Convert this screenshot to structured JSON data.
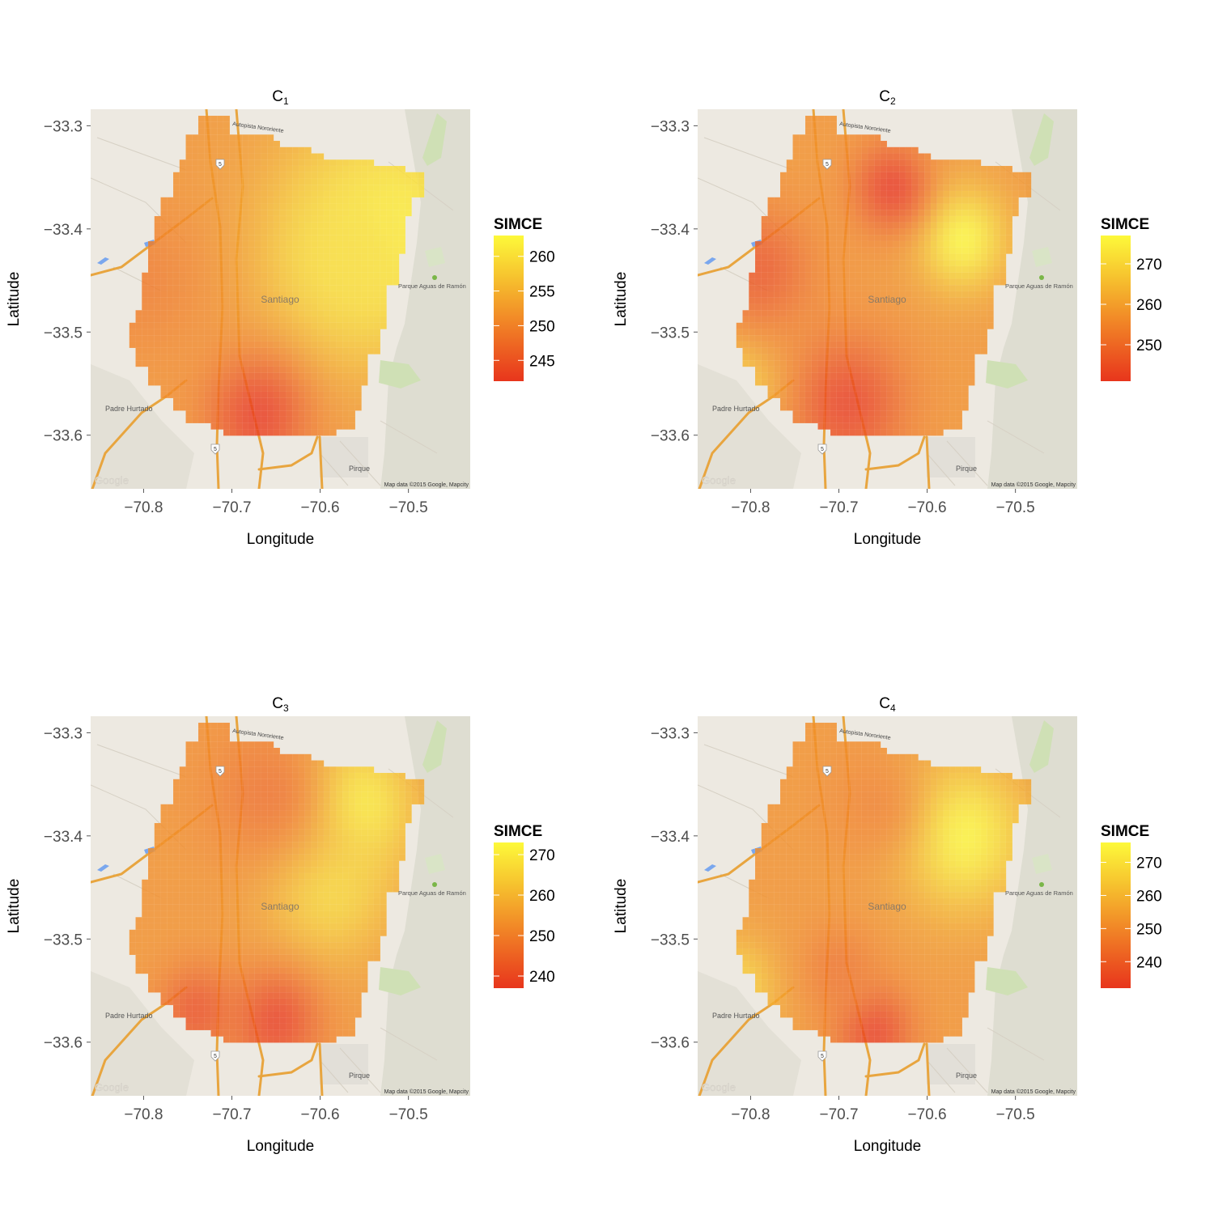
{
  "figure": {
    "x_axis_label": "Longitude",
    "y_axis_label": "Latitude",
    "x_ticks": [
      "−70.8",
      "−70.7",
      "−70.6",
      "−70.5"
    ],
    "y_ticks": [
      "−33.3",
      "−33.4",
      "−33.5",
      "−33.6"
    ],
    "x_range": [
      -70.86,
      -70.43
    ],
    "y_range": [
      -33.652,
      -33.284
    ],
    "map_labels": {
      "city": "Santiago",
      "west_town": "Padre Hurtado",
      "south_town": "Pirque",
      "park": "Parque Aguas de Ramón",
      "highway": "Autopista Nororiente",
      "road_shield": "5",
      "attribution": "Map data ©2015 Google, Mapcity",
      "logo": "Google"
    }
  },
  "chart_data": [
    {
      "type": "heatmap",
      "title": "C",
      "title_sub": "1",
      "legend_title": "SIMCE",
      "legend_ticks": [
        "260",
        "255",
        "250",
        "245"
      ],
      "legend_range": [
        242,
        263
      ],
      "xlabel": "Longitude",
      "ylabel": "Latitude",
      "xlim": [
        -70.86,
        -70.43
      ],
      "ylim": [
        -33.652,
        -33.284
      ],
      "colors": {
        "low": "#e8361c",
        "high": "#fdf93a"
      },
      "hotspots": [
        {
          "lon": -70.52,
          "lat": -33.4,
          "value": 263,
          "spread": 0.08
        },
        {
          "lon": -70.57,
          "lat": -33.43,
          "value": 260,
          "spread": 0.06
        },
        {
          "lon": -70.67,
          "lat": -33.58,
          "value": 242,
          "spread": 0.04
        },
        {
          "lon": -70.8,
          "lat": -33.45,
          "value": 249,
          "spread": 0.05
        }
      ]
    },
    {
      "type": "heatmap",
      "title": "C",
      "title_sub": "2",
      "legend_title": "SIMCE",
      "legend_ticks": [
        "270",
        "260",
        "250"
      ],
      "legend_range": [
        241,
        277
      ],
      "xlabel": "Longitude",
      "ylabel": "Latitude",
      "xlim": [
        -70.86,
        -70.43
      ],
      "ylim": [
        -33.652,
        -33.284
      ],
      "colors": {
        "low": "#e8361c",
        "high": "#fdf93a"
      },
      "hotspots": [
        {
          "lon": -70.56,
          "lat": -33.41,
          "value": 277,
          "spread": 0.035
        },
        {
          "lon": -70.64,
          "lat": -33.36,
          "value": 241,
          "spread": 0.03
        },
        {
          "lon": -70.69,
          "lat": -33.57,
          "value": 242,
          "spread": 0.045
        },
        {
          "lon": -70.82,
          "lat": -33.55,
          "value": 268,
          "spread": 0.035
        },
        {
          "lon": -70.79,
          "lat": -33.44,
          "value": 246,
          "spread": 0.04
        }
      ]
    },
    {
      "type": "heatmap",
      "title": "C",
      "title_sub": "3",
      "legend_title": "SIMCE",
      "legend_ticks": [
        "270",
        "260",
        "250",
        "240"
      ],
      "legend_range": [
        237,
        273
      ],
      "xlabel": "Longitude",
      "ylabel": "Latitude",
      "xlim": [
        -70.86,
        -70.43
      ],
      "ylim": [
        -33.652,
        -33.284
      ],
      "colors": {
        "low": "#e8361c",
        "high": "#fdf93a"
      },
      "hotspots": [
        {
          "lon": -70.56,
          "lat": -33.37,
          "value": 273,
          "spread": 0.045
        },
        {
          "lon": -70.59,
          "lat": -33.45,
          "value": 267,
          "spread": 0.05
        },
        {
          "lon": -70.65,
          "lat": -33.58,
          "value": 238,
          "spread": 0.035
        },
        {
          "lon": -70.74,
          "lat": -33.57,
          "value": 241,
          "spread": 0.03
        },
        {
          "lon": -70.66,
          "lat": -33.36,
          "value": 247,
          "spread": 0.05
        }
      ]
    },
    {
      "type": "heatmap",
      "title": "C",
      "title_sub": "4",
      "legend_title": "SIMCE",
      "legend_ticks": [
        "270",
        "260",
        "250",
        "240"
      ],
      "legend_range": [
        232,
        276
      ],
      "xlabel": "Longitude",
      "ylabel": "Latitude",
      "xlim": [
        -70.86,
        -70.43
      ],
      "ylim": [
        -33.652,
        -33.284
      ],
      "colors": {
        "low": "#e8361c",
        "high": "#fdf93a"
      },
      "hotspots": [
        {
          "lon": -70.56,
          "lat": -33.4,
          "value": 276,
          "spread": 0.05
        },
        {
          "lon": -70.82,
          "lat": -33.55,
          "value": 268,
          "spread": 0.035
        },
        {
          "lon": -70.66,
          "lat": -33.59,
          "value": 233,
          "spread": 0.03
        },
        {
          "lon": -70.7,
          "lat": -33.53,
          "value": 245,
          "spread": 0.03
        },
        {
          "lon": -70.66,
          "lat": -33.37,
          "value": 248,
          "spread": 0.04
        }
      ]
    }
  ]
}
